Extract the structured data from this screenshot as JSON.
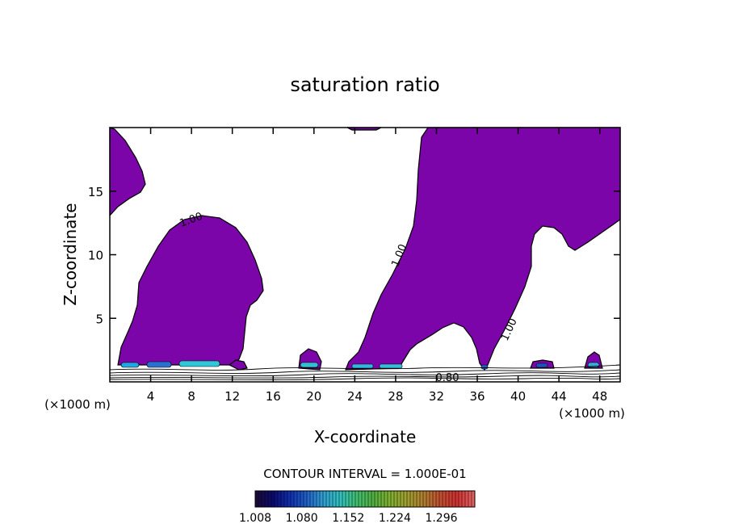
{
  "chart_data": {
    "type": "contour",
    "title": "saturation ratio",
    "xlabel": "X-coordinate",
    "ylabel": "Z-coordinate",
    "x_unit": "(×1000 m)",
    "y_unit": "(×1000 m)",
    "xlim": [
      0,
      50
    ],
    "ylim": [
      0,
      20
    ],
    "x_ticks": [
      "4",
      "8",
      "12",
      "16",
      "20",
      "24",
      "28",
      "32",
      "36",
      "40",
      "44",
      "48"
    ],
    "y_ticks": [
      "5",
      "10",
      "15"
    ],
    "contour_interval_text": "CONTOUR INTERVAL = 1.000E-01",
    "contour_labels": [
      "1.00",
      "1.00",
      "1.00",
      "0.80"
    ],
    "colorbar": {
      "labels": [
        "1.008",
        "1.080",
        "1.152",
        "1.224",
        "1.296"
      ],
      "colors": [
        "#1a0a3a",
        "#0a0a70",
        "#1030b0",
        "#2060c8",
        "#30a0d0",
        "#30c0c0",
        "#40c070",
        "#50b040",
        "#80b030",
        "#a0a030",
        "#b08030",
        "#c05030",
        "#d03030",
        "#e06060"
      ]
    },
    "fill_color": "#7b05a8"
  }
}
